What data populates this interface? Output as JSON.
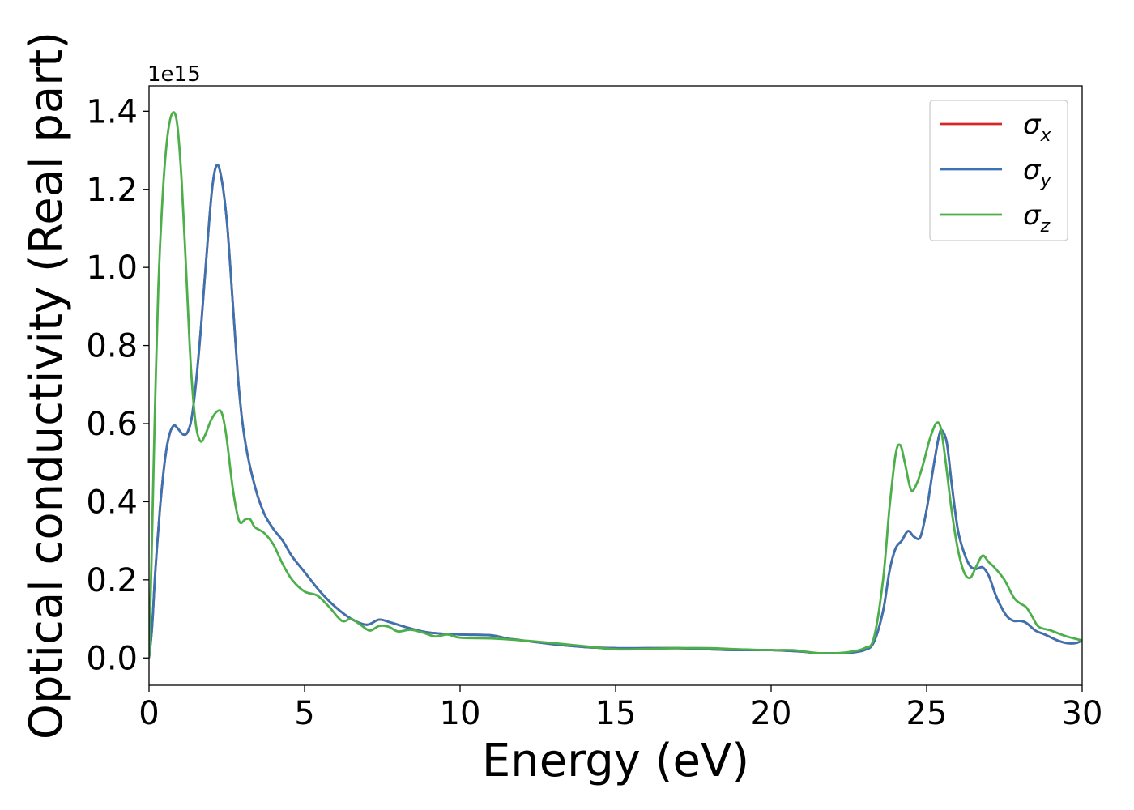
{
  "chart_data": {
    "type": "line",
    "xlabel": "Energy (eV)",
    "ylabel": "Optical conductivity (Real part)",
    "offset_text": "1e15",
    "xlim": [
      0,
      30
    ],
    "ylim": [
      -0.07,
      1.465
    ],
    "x_ticks": [
      0,
      5,
      10,
      15,
      20,
      25,
      30
    ],
    "y_ticks": [
      0.0,
      0.2,
      0.4,
      0.6,
      0.8,
      1.0,
      1.2,
      1.4
    ],
    "x_tick_labels": [
      "0",
      "5",
      "10",
      "15",
      "20",
      "25",
      "30"
    ],
    "y_tick_labels": [
      "0.0",
      "0.2",
      "0.4",
      "0.6",
      "0.8",
      "1.0",
      "1.2",
      "1.4"
    ],
    "grid": false,
    "legend_position": "top-right",
    "series": [
      {
        "name": "σx",
        "symbol": "σ",
        "subscript": "x",
        "color": "#d62728",
        "points": [
          [
            0,
            0
          ],
          [
            0.1,
            0.08
          ],
          [
            0.2,
            0.22
          ],
          [
            0.35,
            0.38
          ],
          [
            0.5,
            0.5
          ],
          [
            0.65,
            0.57
          ],
          [
            0.8,
            0.595
          ],
          [
            0.95,
            0.585
          ],
          [
            1.1,
            0.572
          ],
          [
            1.25,
            0.58
          ],
          [
            1.4,
            0.63
          ],
          [
            1.6,
            0.78
          ],
          [
            1.8,
            0.98
          ],
          [
            2.0,
            1.18
          ],
          [
            2.15,
            1.258
          ],
          [
            2.3,
            1.24
          ],
          [
            2.5,
            1.12
          ],
          [
            2.7,
            0.9
          ],
          [
            2.9,
            0.68
          ],
          [
            3.1,
            0.55
          ],
          [
            3.4,
            0.44
          ],
          [
            3.7,
            0.37
          ],
          [
            4.0,
            0.33
          ],
          [
            4.3,
            0.3
          ],
          [
            4.6,
            0.26
          ],
          [
            5.0,
            0.22
          ],
          [
            5.5,
            0.17
          ],
          [
            6.0,
            0.13
          ],
          [
            6.5,
            0.1
          ],
          [
            7.0,
            0.085
          ],
          [
            7.4,
            0.098
          ],
          [
            7.8,
            0.09
          ],
          [
            8.3,
            0.078
          ],
          [
            9.0,
            0.065
          ],
          [
            10.0,
            0.06
          ],
          [
            11.0,
            0.058
          ],
          [
            11.5,
            0.05
          ],
          [
            12.0,
            0.045
          ],
          [
            13.0,
            0.035
          ],
          [
            14.0,
            0.028
          ],
          [
            15.0,
            0.025
          ],
          [
            16.0,
            0.025
          ],
          [
            17.0,
            0.025
          ],
          [
            18.0,
            0.022
          ],
          [
            19.0,
            0.02
          ],
          [
            20.0,
            0.02
          ],
          [
            21.0,
            0.016
          ],
          [
            21.5,
            0.012
          ],
          [
            22.0,
            0.012
          ],
          [
            22.5,
            0.013
          ],
          [
            23.0,
            0.02
          ],
          [
            23.3,
            0.04
          ],
          [
            23.6,
            0.12
          ],
          [
            23.8,
            0.22
          ],
          [
            24.0,
            0.28
          ],
          [
            24.2,
            0.3
          ],
          [
            24.4,
            0.325
          ],
          [
            24.6,
            0.31
          ],
          [
            24.8,
            0.31
          ],
          [
            25.0,
            0.38
          ],
          [
            25.2,
            0.48
          ],
          [
            25.4,
            0.57
          ],
          [
            25.5,
            0.582
          ],
          [
            25.65,
            0.55
          ],
          [
            25.8,
            0.45
          ],
          [
            26.0,
            0.33
          ],
          [
            26.2,
            0.27
          ],
          [
            26.4,
            0.235
          ],
          [
            26.6,
            0.228
          ],
          [
            26.8,
            0.232
          ],
          [
            27.0,
            0.21
          ],
          [
            27.2,
            0.165
          ],
          [
            27.4,
            0.13
          ],
          [
            27.6,
            0.105
          ],
          [
            27.8,
            0.095
          ],
          [
            28.0,
            0.095
          ],
          [
            28.2,
            0.09
          ],
          [
            28.5,
            0.07
          ],
          [
            28.8,
            0.06
          ],
          [
            29.2,
            0.045
          ],
          [
            29.5,
            0.038
          ],
          [
            29.8,
            0.038
          ],
          [
            30.0,
            0.045
          ]
        ]
      },
      {
        "name": "σy",
        "symbol": "σ",
        "subscript": "y",
        "color": "#3b73b2",
        "points": [
          [
            0,
            0
          ],
          [
            0.1,
            0.08
          ],
          [
            0.2,
            0.22
          ],
          [
            0.35,
            0.38
          ],
          [
            0.5,
            0.5
          ],
          [
            0.65,
            0.57
          ],
          [
            0.8,
            0.595
          ],
          [
            0.95,
            0.585
          ],
          [
            1.1,
            0.572
          ],
          [
            1.25,
            0.58
          ],
          [
            1.4,
            0.63
          ],
          [
            1.6,
            0.78
          ],
          [
            1.8,
            0.98
          ],
          [
            2.0,
            1.18
          ],
          [
            2.15,
            1.258
          ],
          [
            2.3,
            1.24
          ],
          [
            2.5,
            1.12
          ],
          [
            2.7,
            0.9
          ],
          [
            2.9,
            0.68
          ],
          [
            3.1,
            0.55
          ],
          [
            3.4,
            0.44
          ],
          [
            3.7,
            0.37
          ],
          [
            4.0,
            0.33
          ],
          [
            4.3,
            0.3
          ],
          [
            4.6,
            0.26
          ],
          [
            5.0,
            0.22
          ],
          [
            5.5,
            0.17
          ],
          [
            6.0,
            0.13
          ],
          [
            6.5,
            0.1
          ],
          [
            7.0,
            0.085
          ],
          [
            7.4,
            0.098
          ],
          [
            7.8,
            0.09
          ],
          [
            8.3,
            0.078
          ],
          [
            9.0,
            0.065
          ],
          [
            10.0,
            0.06
          ],
          [
            11.0,
            0.058
          ],
          [
            11.5,
            0.05
          ],
          [
            12.0,
            0.045
          ],
          [
            13.0,
            0.035
          ],
          [
            14.0,
            0.028
          ],
          [
            15.0,
            0.025
          ],
          [
            16.0,
            0.025
          ],
          [
            17.0,
            0.025
          ],
          [
            18.0,
            0.022
          ],
          [
            19.0,
            0.02
          ],
          [
            20.0,
            0.02
          ],
          [
            21.0,
            0.016
          ],
          [
            21.5,
            0.012
          ],
          [
            22.0,
            0.012
          ],
          [
            22.5,
            0.013
          ],
          [
            23.0,
            0.02
          ],
          [
            23.3,
            0.04
          ],
          [
            23.6,
            0.12
          ],
          [
            23.8,
            0.22
          ],
          [
            24.0,
            0.28
          ],
          [
            24.2,
            0.3
          ],
          [
            24.4,
            0.325
          ],
          [
            24.6,
            0.31
          ],
          [
            24.8,
            0.31
          ],
          [
            25.0,
            0.38
          ],
          [
            25.2,
            0.48
          ],
          [
            25.4,
            0.57
          ],
          [
            25.5,
            0.582
          ],
          [
            25.65,
            0.55
          ],
          [
            25.8,
            0.45
          ],
          [
            26.0,
            0.33
          ],
          [
            26.2,
            0.27
          ],
          [
            26.4,
            0.235
          ],
          [
            26.6,
            0.228
          ],
          [
            26.8,
            0.232
          ],
          [
            27.0,
            0.21
          ],
          [
            27.2,
            0.165
          ],
          [
            27.4,
            0.13
          ],
          [
            27.6,
            0.105
          ],
          [
            27.8,
            0.095
          ],
          [
            28.0,
            0.095
          ],
          [
            28.2,
            0.09
          ],
          [
            28.5,
            0.07
          ],
          [
            28.8,
            0.06
          ],
          [
            29.2,
            0.045
          ],
          [
            29.5,
            0.038
          ],
          [
            29.8,
            0.038
          ],
          [
            30.0,
            0.045
          ]
        ]
      },
      {
        "name": "σz",
        "symbol": "σ",
        "subscript": "z",
        "color": "#4daf4a",
        "points": [
          [
            0,
            0
          ],
          [
            0.08,
            0.25
          ],
          [
            0.18,
            0.6
          ],
          [
            0.3,
            0.95
          ],
          [
            0.45,
            1.2
          ],
          [
            0.6,
            1.34
          ],
          [
            0.75,
            1.395
          ],
          [
            0.9,
            1.37
          ],
          [
            1.05,
            1.22
          ],
          [
            1.2,
            0.98
          ],
          [
            1.35,
            0.74
          ],
          [
            1.5,
            0.6
          ],
          [
            1.65,
            0.555
          ],
          [
            1.8,
            0.57
          ],
          [
            2.0,
            0.61
          ],
          [
            2.2,
            0.632
          ],
          [
            2.35,
            0.625
          ],
          [
            2.5,
            0.56
          ],
          [
            2.7,
            0.43
          ],
          [
            2.9,
            0.35
          ],
          [
            3.1,
            0.355
          ],
          [
            3.25,
            0.355
          ],
          [
            3.4,
            0.335
          ],
          [
            3.7,
            0.32
          ],
          [
            4.0,
            0.29
          ],
          [
            4.3,
            0.24
          ],
          [
            4.6,
            0.2
          ],
          [
            5.0,
            0.17
          ],
          [
            5.4,
            0.16
          ],
          [
            5.8,
            0.13
          ],
          [
            6.2,
            0.095
          ],
          [
            6.5,
            0.1
          ],
          [
            6.8,
            0.085
          ],
          [
            7.1,
            0.07
          ],
          [
            7.4,
            0.082
          ],
          [
            7.7,
            0.08
          ],
          [
            8.0,
            0.068
          ],
          [
            8.4,
            0.072
          ],
          [
            8.8,
            0.065
          ],
          [
            9.2,
            0.055
          ],
          [
            9.6,
            0.06
          ],
          [
            10.0,
            0.052
          ],
          [
            11.0,
            0.05
          ],
          [
            12.0,
            0.045
          ],
          [
            13.0,
            0.038
          ],
          [
            14.0,
            0.03
          ],
          [
            15.0,
            0.022
          ],
          [
            16.0,
            0.023
          ],
          [
            17.0,
            0.025
          ],
          [
            18.0,
            0.025
          ],
          [
            19.0,
            0.022
          ],
          [
            20.0,
            0.02
          ],
          [
            20.7,
            0.02
          ],
          [
            21.2,
            0.015
          ],
          [
            21.6,
            0.012
          ],
          [
            22.0,
            0.012
          ],
          [
            22.5,
            0.015
          ],
          [
            23.0,
            0.025
          ],
          [
            23.3,
            0.05
          ],
          [
            23.6,
            0.2
          ],
          [
            23.8,
            0.38
          ],
          [
            24.0,
            0.52
          ],
          [
            24.15,
            0.545
          ],
          [
            24.3,
            0.5
          ],
          [
            24.5,
            0.43
          ],
          [
            24.7,
            0.45
          ],
          [
            24.9,
            0.5
          ],
          [
            25.1,
            0.56
          ],
          [
            25.3,
            0.6
          ],
          [
            25.45,
            0.59
          ],
          [
            25.6,
            0.51
          ],
          [
            25.8,
            0.38
          ],
          [
            26.0,
            0.28
          ],
          [
            26.2,
            0.22
          ],
          [
            26.4,
            0.205
          ],
          [
            26.6,
            0.235
          ],
          [
            26.8,
            0.262
          ],
          [
            27.0,
            0.245
          ],
          [
            27.2,
            0.23
          ],
          [
            27.5,
            0.2
          ],
          [
            27.8,
            0.155
          ],
          [
            28.0,
            0.14
          ],
          [
            28.2,
            0.13
          ],
          [
            28.4,
            0.105
          ],
          [
            28.6,
            0.08
          ],
          [
            29.0,
            0.07
          ],
          [
            29.5,
            0.055
          ],
          [
            30.0,
            0.045
          ]
        ]
      }
    ]
  }
}
